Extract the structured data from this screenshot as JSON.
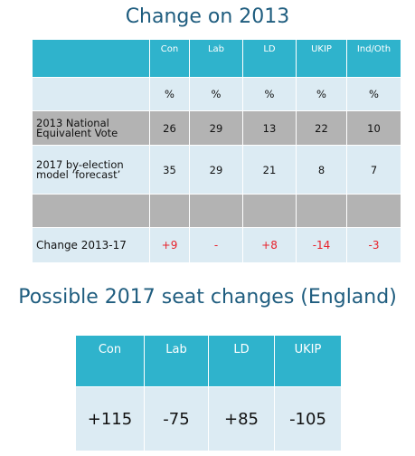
{
  "title1": "Change on 2013",
  "table1": {
    "headers": [
      "",
      "Con",
      "Lab",
      "LD",
      "UKIP",
      "Ind/Oth"
    ],
    "rows": [
      [
        "",
        "%",
        "%",
        "%",
        "%",
        "%"
      ],
      [
        "2013 National Equivalent Vote",
        "26",
        "29",
        "13",
        "22",
        "10"
      ],
      [
        "2017 by-election model ‘forecast’",
        "35",
        "29",
        "21",
        "8",
        "7"
      ],
      [
        "",
        "",
        "",
        "",
        "",
        ""
      ],
      [
        "Change 2013-17",
        "+9",
        "-",
        "+8",
        "-14",
        "-3"
      ]
    ]
  },
  "title2": "Possible 2017 seat changes (England)",
  "table2": {
    "headers": [
      "Con",
      "Lab",
      "LD",
      "UKIP"
    ],
    "values": [
      "+115",
      "-75",
      "+85",
      "-105"
    ]
  }
}
